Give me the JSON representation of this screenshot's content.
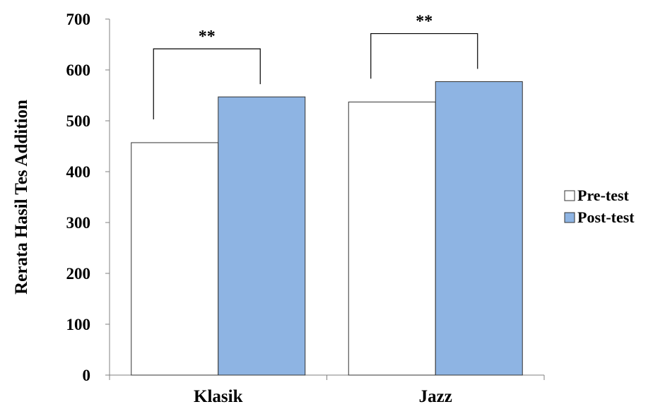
{
  "chart_data": {
    "type": "bar",
    "categories": [
      "Klasik",
      "Jazz"
    ],
    "series": [
      {
        "name": "Pre-test",
        "values": [
          457,
          537
        ],
        "color": "#ffffff"
      },
      {
        "name": "Post-test",
        "values": [
          547,
          577
        ],
        "color": "#8eb4e3"
      }
    ],
    "ylabel": "Rerata Hasil Tes Addition",
    "xlabel": "",
    "ylim": [
      0,
      700
    ],
    "yticks": [
      0,
      100,
      200,
      300,
      400,
      500,
      600,
      700
    ],
    "grid": false,
    "legend_position": "right",
    "annotations": [
      {
        "category": "Klasik",
        "text": "**"
      },
      {
        "category": "Jazz",
        "text": "**"
      }
    ]
  }
}
